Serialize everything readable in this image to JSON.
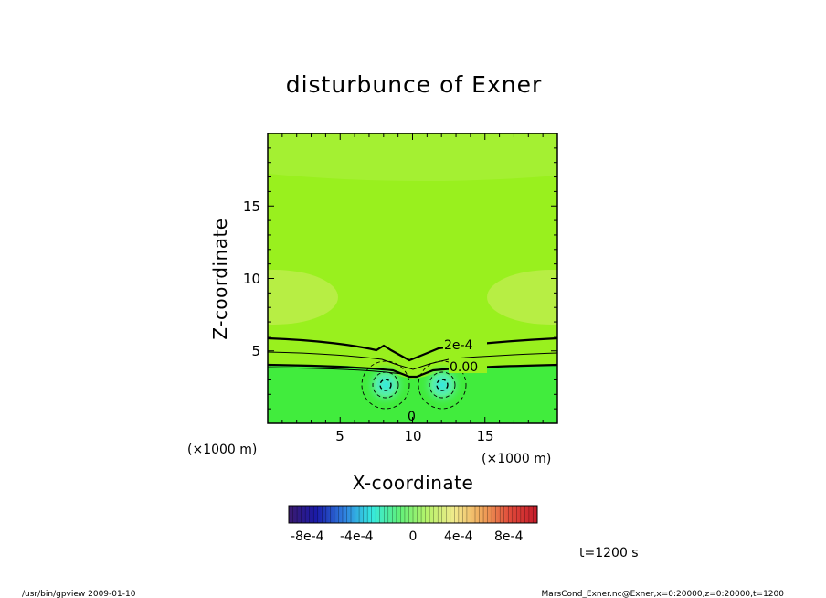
{
  "chart_data": {
    "type": "heatmap",
    "title": "disturbunce of Exner",
    "xlabel": "X-coordinate",
    "ylabel": "Z-coordinate",
    "x_unit": "(×1000 m)",
    "y_unit": "(×1000 m)",
    "xlim": [
      0,
      20
    ],
    "ylim": [
      0,
      20
    ],
    "x_ticks": [
      5,
      10,
      15
    ],
    "y_ticks": [
      5,
      10,
      15
    ],
    "grid": false,
    "contour_labels": [
      "2e-4",
      "0.00",
      "0"
    ],
    "colorbar": {
      "min": -0.0012,
      "max": 0.0012,
      "tick_labels": [
        "-8e-4",
        "-4e-4",
        "0",
        "4e-4",
        "8e-4"
      ],
      "colors": [
        "#3b1a6e",
        "#1a1aa8",
        "#2f7fe0",
        "#35e8e0",
        "#5ff07a",
        "#b6f26a",
        "#f2ea8c",
        "#f0a65a",
        "#e04a3a",
        "#c41a2a"
      ]
    },
    "field_colors": {
      "upper": "#99f01e",
      "upper_light": "#a4f032",
      "band": "#b7ee44",
      "lower": "#41ec3d",
      "anomaly": "#35e8e0"
    },
    "anomalies": [
      {
        "x": 8.0,
        "z": 2.5
      },
      {
        "x": 12.0,
        "z": 2.5
      }
    ]
  },
  "annotation": {
    "time_label": "t=1200 s"
  },
  "footer": {
    "left": "/usr/bin/gpview   2009-01-10",
    "right": "MarsCond_Exner.nc@Exner,x=0:20000,z=0:20000,t=1200"
  }
}
